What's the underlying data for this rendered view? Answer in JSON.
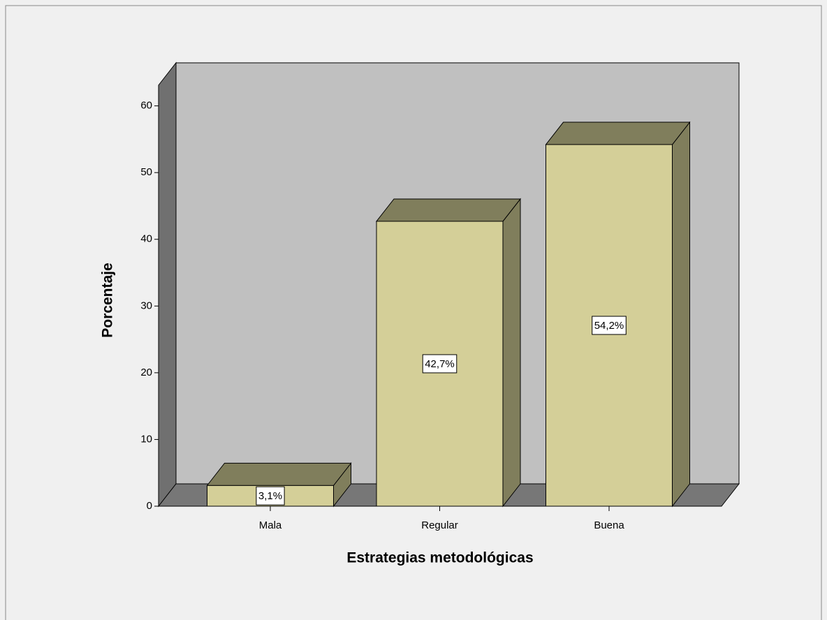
{
  "chart_data": {
    "type": "bar3d",
    "categories": [
      "Mala",
      "Regular",
      "Buena"
    ],
    "values": [
      3.1,
      42.7,
      54.2
    ],
    "value_labels": [
      "3,1%",
      "42,7%",
      "54,2%"
    ],
    "color": "#d4cf98",
    "side_color": "#807e5c",
    "x_label": "Estrategias metodológicas",
    "y_label": "Porcentaje",
    "ylim": [
      0,
      63.1
    ],
    "yticks": [
      0,
      10,
      20,
      30,
      40,
      50,
      60
    ]
  }
}
